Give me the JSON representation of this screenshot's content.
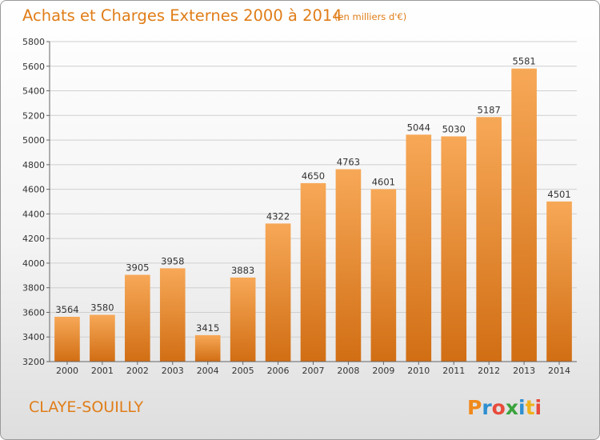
{
  "chart_data": {
    "type": "bar",
    "title": "Achats et Charges Externes 2000 à 2014",
    "subtitle": "(en milliers d'€)",
    "categories": [
      "2000",
      "2001",
      "2002",
      "2003",
      "2004",
      "2005",
      "2006",
      "2007",
      "2008",
      "2009",
      "2010",
      "2011",
      "2012",
      "2013",
      "2014"
    ],
    "values": [
      3564,
      3580,
      3905,
      3958,
      3415,
      3883,
      4322,
      4650,
      4763,
      4601,
      5044,
      5030,
      5187,
      5581,
      4501
    ],
    "xlabel": "",
    "ylabel": "",
    "ylim": [
      3200,
      5800
    ],
    "yticks": [
      3200,
      3400,
      3600,
      3800,
      4000,
      4200,
      4400,
      4600,
      4800,
      5000,
      5200,
      5400,
      5600,
      5800
    ],
    "grid": true,
    "colors": {
      "bar_top": "#f7a857",
      "bar_bottom": "#d16e14",
      "accent": "#e07d18",
      "grid": "#cfcfcf"
    }
  },
  "footer": {
    "city": "CLAYE-SOUILLY",
    "logo_text": "Proxiti",
    "logo_letter_colors": [
      "#f08a1c",
      "#2e8fd0",
      "#e84b3a",
      "#3aa33c",
      "#2e8fd0",
      "#f0b11c",
      "#e84b3a"
    ]
  }
}
